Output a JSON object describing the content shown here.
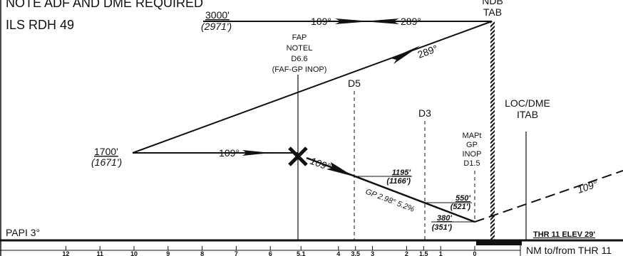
{
  "notes": {
    "adf_dme": "NOTE ADF AND DME REQUIRED",
    "ils_rdh": "ILS RDH 49",
    "papi": "PAPI 3°"
  },
  "ndb": {
    "label": "NDB",
    "ident": "TAB"
  },
  "loc_dme": {
    "label": "LOC/DME",
    "ident": "ITAB"
  },
  "initial": {
    "altitude": "3000'",
    "height": "(2971')",
    "outbound": "109°",
    "inbound": "289°",
    "descent_track": "289°"
  },
  "intermediate": {
    "altitude": "1700'",
    "height": "(1671')",
    "track": "109°"
  },
  "fap": {
    "lines": [
      "FAP",
      "NOTEL",
      "D6.6",
      "(FAF-GP INOP)"
    ],
    "track": "109°"
  },
  "fixes": {
    "d5": "D5",
    "d3": "D3"
  },
  "mapt": {
    "lines": [
      "MAPt",
      "GP",
      "INOP",
      "D1.5"
    ]
  },
  "glide_path": {
    "label": "GP 2.98° 5.2%",
    "checks": [
      {
        "altitude": "1195'",
        "height": "(1166')"
      },
      {
        "altitude": "550'",
        "height": "(521')"
      },
      {
        "altitude": "380'",
        "height": "(351')"
      }
    ]
  },
  "missed_approach": {
    "track": "109°"
  },
  "threshold": "THR 11 ELEV 29'",
  "scale": {
    "caption": "NM to/from THR 11",
    "labels": [
      "12",
      "11",
      "10",
      "9",
      "8",
      "7",
      "6",
      "5.1",
      "4",
      "3.5",
      "3",
      "2",
      "1.5",
      "1",
      "0"
    ]
  }
}
